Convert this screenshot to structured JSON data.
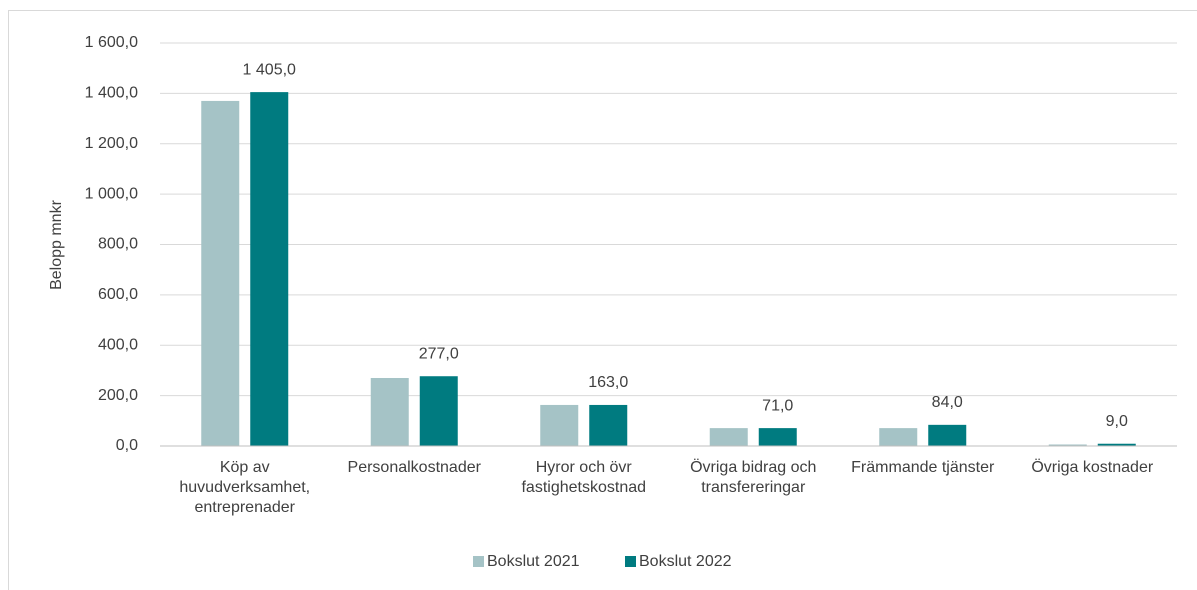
{
  "chart_data": {
    "type": "bar",
    "y_label": "Belopp mnkr",
    "categories": [
      "Köp av huvudverksamhet, entreprenader",
      "Personalkostnader",
      "Hyror och övr fastighetskostnad",
      "Övriga bidrag och transfereringar",
      "Främmande tjänster",
      "Övriga kostnader"
    ],
    "series": [
      {
        "name": "Bokslut 2021",
        "color": "#a5c3c6",
        "values": [
          1370,
          270,
          163,
          71,
          71,
          6
        ]
      },
      {
        "name": "Bokslut 2022",
        "color": "#007b80",
        "values": [
          1405,
          277,
          163,
          71,
          84,
          9
        ],
        "value_labels": [
          "1 405,0",
          "277,0",
          "163,0",
          "71,0",
          "84,0",
          "9,0"
        ]
      }
    ],
    "ylim": [
      0,
      1600
    ],
    "yticks": [
      {
        "value": 0,
        "label": "0,0"
      },
      {
        "value": 200,
        "label": "200,0"
      },
      {
        "value": 400,
        "label": "400,0"
      },
      {
        "value": 600,
        "label": "600,0"
      },
      {
        "value": 800,
        "label": "800,0"
      },
      {
        "value": 1000,
        "label": "1 000,0"
      },
      {
        "value": 1200,
        "label": "1 200,0"
      },
      {
        "value": 1400,
        "label": "1 400,0"
      },
      {
        "value": 1600,
        "label": "1 600,0"
      }
    ],
    "grid": true
  }
}
